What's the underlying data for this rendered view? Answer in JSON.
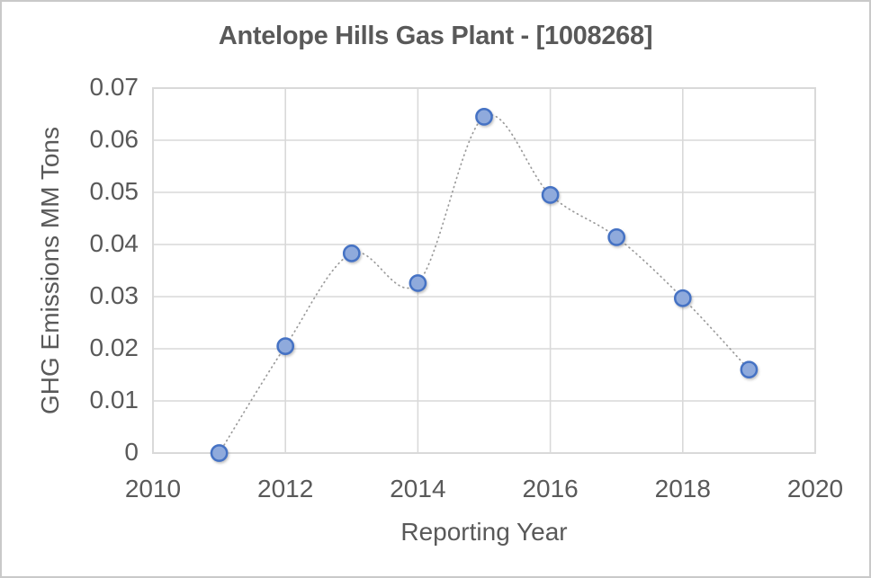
{
  "window": {
    "background": "#ffffff",
    "border_color": "#c9c9c9"
  },
  "chart_data": {
    "type": "scatter",
    "title": "Antelope Hills Gas Plant - [1008268]",
    "xlabel": "Reporting Year",
    "ylabel": "GHG Emissions MM Tons",
    "x": [
      2011,
      2012,
      2013,
      2014,
      2015,
      2016,
      2017,
      2018,
      2019
    ],
    "y": [
      0.0,
      0.0205,
      0.0383,
      0.0326,
      0.0645,
      0.0495,
      0.0414,
      0.0297,
      0.016
    ],
    "xlim": [
      2010,
      2020
    ],
    "ylim": [
      0,
      0.07
    ],
    "x_ticks": [
      2010,
      2012,
      2014,
      2016,
      2018,
      2020
    ],
    "x_tick_labels": [
      "2010",
      "2012",
      "2014",
      "2016",
      "2018",
      "2020"
    ],
    "y_ticks": [
      0,
      0.01,
      0.02,
      0.03,
      0.04,
      0.05,
      0.06,
      0.07
    ],
    "y_tick_labels": [
      "0",
      "0.01",
      "0.02",
      "0.03",
      "0.04",
      "0.05",
      "0.06",
      "0.07"
    ],
    "grid": true,
    "legend": "none",
    "line": {
      "style": "dotted",
      "smooth": true,
      "color": "#9b9b9b"
    },
    "marker": {
      "shape": "circle",
      "fill": "#8faadc",
      "stroke": "#4472c4"
    },
    "colors": {
      "text": "#595959",
      "grid": "#d9d9d9"
    }
  }
}
